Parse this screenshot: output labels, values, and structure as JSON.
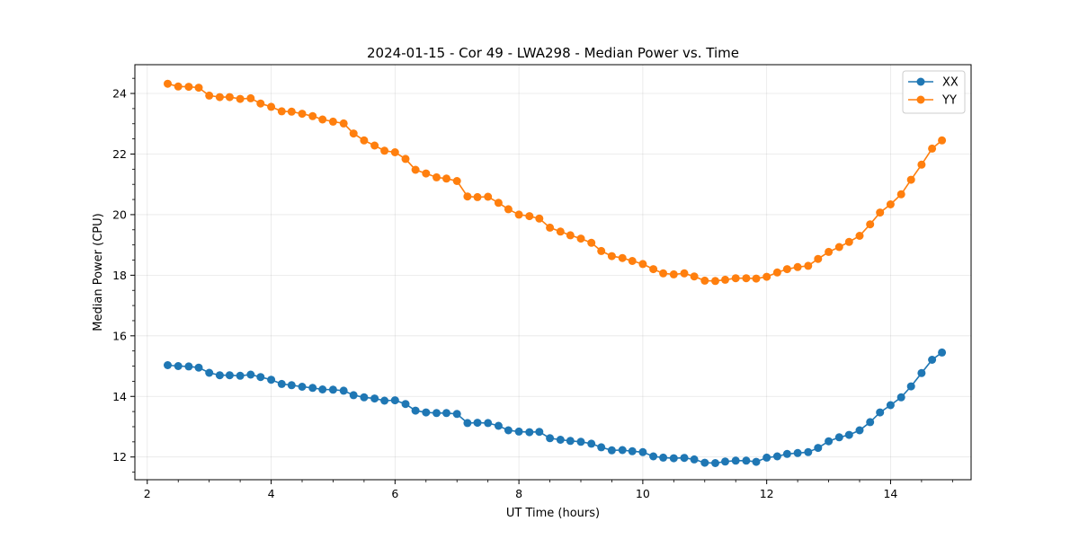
{
  "chart_data": {
    "type": "line",
    "title": "2024-01-15 - Cor 49 - LWA298 - Median Power vs. Time",
    "xlabel": "UT Time (hours)",
    "ylabel": "Median Power (CPU)",
    "xlim": [
      1.8,
      15.3
    ],
    "ylim": [
      11.25,
      24.95
    ],
    "xticks": [
      2,
      4,
      6,
      8,
      10,
      12,
      14
    ],
    "yticks": [
      12,
      14,
      16,
      18,
      20,
      22,
      24
    ],
    "grid": true,
    "legend": "top-right",
    "x": [
      2.33,
      2.5,
      2.67,
      2.83,
      3.0,
      3.17,
      3.33,
      3.5,
      3.67,
      3.83,
      4.0,
      4.17,
      4.33,
      4.5,
      4.67,
      4.83,
      5.0,
      5.17,
      5.33,
      5.5,
      5.67,
      5.83,
      6.0,
      6.17,
      6.33,
      6.5,
      6.67,
      6.83,
      7.0,
      7.17,
      7.33,
      7.5,
      7.67,
      7.83,
      8.0,
      8.17,
      8.33,
      8.5,
      8.67,
      8.83,
      9.0,
      9.17,
      9.33,
      9.5,
      9.67,
      9.83,
      10.0,
      10.17,
      10.33,
      10.5,
      10.67,
      10.83,
      11.0,
      11.17,
      11.33,
      11.5,
      11.67,
      11.83,
      12.0,
      12.17,
      12.33,
      12.5,
      12.67,
      12.83,
      13.0,
      13.17,
      13.33,
      13.5,
      13.67,
      13.83,
      14.0,
      14.17,
      14.33,
      14.5,
      14.67,
      14.83
    ],
    "series": [
      {
        "name": "XX",
        "color": "#1f77b4",
        "values": [
          15.03,
          15.0,
          14.99,
          14.95,
          14.78,
          14.7,
          14.7,
          14.68,
          14.72,
          14.64,
          14.55,
          14.41,
          14.37,
          14.32,
          14.28,
          14.23,
          14.22,
          14.19,
          14.04,
          13.97,
          13.93,
          13.86,
          13.87,
          13.75,
          13.53,
          13.47,
          13.45,
          13.45,
          13.42,
          13.12,
          13.13,
          13.12,
          13.03,
          12.88,
          12.84,
          12.82,
          12.83,
          12.62,
          12.57,
          12.53,
          12.5,
          12.44,
          12.32,
          12.22,
          12.23,
          12.19,
          12.16,
          12.02,
          11.98,
          11.96,
          11.97,
          11.92,
          11.81,
          11.8,
          11.85,
          11.88,
          11.88,
          11.84,
          11.98,
          12.02,
          12.1,
          12.13,
          12.16,
          12.3,
          12.52,
          12.65,
          12.73,
          12.88,
          13.15,
          13.47,
          13.71,
          13.97,
          14.33,
          14.77,
          15.21,
          15.45
        ]
      },
      {
        "name": "YY",
        "color": "#ff7f0e",
        "values": [
          24.32,
          24.23,
          24.22,
          24.19,
          23.93,
          23.88,
          23.88,
          23.82,
          23.84,
          23.67,
          23.56,
          23.41,
          23.4,
          23.33,
          23.25,
          23.14,
          23.07,
          23.01,
          22.68,
          22.45,
          22.28,
          22.11,
          22.06,
          21.84,
          21.48,
          21.36,
          21.23,
          21.19,
          21.11,
          20.6,
          20.58,
          20.59,
          20.39,
          20.18,
          20.0,
          19.95,
          19.87,
          19.57,
          19.44,
          19.32,
          19.21,
          19.07,
          18.8,
          18.63,
          18.57,
          18.47,
          18.37,
          18.2,
          18.06,
          18.03,
          18.06,
          17.96,
          17.82,
          17.81,
          17.85,
          17.9,
          17.9,
          17.89,
          17.95,
          18.09,
          18.2,
          18.27,
          18.31,
          18.54,
          18.77,
          18.93,
          19.1,
          19.3,
          19.68,
          20.07,
          20.34,
          20.67,
          21.15,
          21.65,
          22.18,
          22.45
        ]
      }
    ]
  }
}
